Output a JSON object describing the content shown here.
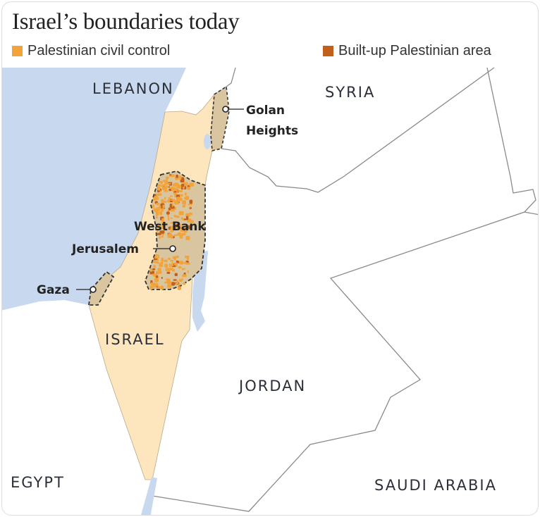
{
  "title": "Israel’s boundaries today",
  "legend": [
    {
      "label": "Palestinian civil control",
      "color": "#f2a33a"
    },
    {
      "label": "Built-up Palestinian area",
      "color": "#c1601a"
    }
  ],
  "colors": {
    "sea": "#c8d9ef",
    "israel": "#fde6bd",
    "territory": "#d9c6a0",
    "land": "#ffffff",
    "border": "#7a7a7a"
  },
  "countries": {
    "lebanon": "LEBANON",
    "syria": "SYRIA",
    "israel": "ISRAEL",
    "jordan": "JORDAN",
    "egypt": "EGYPT",
    "saudi_arabia": "SAUDI ARABIA"
  },
  "places": {
    "golan_line1": "Golan",
    "golan_line2": "Heights",
    "west_bank": "West Bank",
    "jerusalem": "Jerusalem",
    "gaza": "Gaza"
  }
}
